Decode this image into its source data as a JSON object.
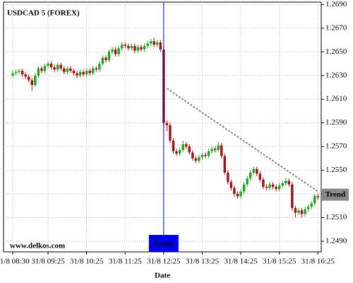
{
  "chart_data": {
    "type": "candlestick",
    "title": "USDCAD 5 (FOREX)",
    "xlabel": "Date",
    "watermark": "www.delkos.com",
    "categories": [
      "31/8 08:30",
      null,
      null,
      null,
      null,
      null,
      null,
      null,
      null,
      null,
      null,
      "31/8 09:25",
      null,
      null,
      null,
      null,
      null,
      null,
      null,
      null,
      null,
      null,
      null,
      "31/8 10:25",
      null,
      null,
      null,
      null,
      null,
      null,
      null,
      null,
      null,
      null,
      null,
      "31/8 11:25",
      null,
      null,
      null,
      null,
      null,
      null,
      null,
      null,
      null,
      null,
      null,
      "31/8 12:25",
      null,
      null,
      null,
      null,
      null,
      null,
      null,
      null,
      null,
      null,
      null,
      "31/8 13:25",
      null,
      null,
      null,
      null,
      null,
      null,
      null,
      null,
      null,
      null,
      null,
      "31/8 14:25",
      null,
      null,
      null,
      null,
      null,
      null,
      null,
      null,
      null,
      null,
      null,
      "31/8 15:25",
      null,
      null,
      null,
      null,
      null,
      null,
      null,
      null,
      null,
      null,
      null,
      "31/8 16:25"
    ],
    "opens": [
      1.263,
      1.2632,
      1.2633,
      1.2634,
      1.2631,
      1.2629,
      1.2626,
      1.2622,
      1.263,
      1.2636,
      1.2634,
      1.2638,
      1.264,
      1.2637,
      1.2635,
      1.2639,
      1.2636,
      1.2633,
      1.2636,
      1.2634,
      1.2632,
      1.263,
      1.2633,
      1.2631,
      1.2634,
      1.2632,
      1.2636,
      1.2635,
      1.264,
      1.2645,
      1.2643,
      1.265,
      1.2652,
      1.2648,
      1.2653,
      1.2656,
      1.2655,
      1.2653,
      1.2655,
      1.2651,
      1.2654,
      1.2652,
      1.2655,
      1.2657,
      1.2659,
      1.2656,
      1.2658,
      1.2652,
      1.259,
      1.2588,
      1.2575,
      1.2566,
      1.2564,
      1.2567,
      1.2572,
      1.257,
      1.2565,
      1.256,
      1.2558,
      1.2561,
      1.2563,
      1.2562,
      1.2566,
      1.2568,
      1.2567,
      1.2571,
      1.2562,
      1.2548,
      1.254,
      1.2535,
      1.253,
      1.2528,
      1.2532,
      1.2538,
      1.2543,
      1.2548,
      1.2551,
      1.2547,
      1.2542,
      1.2536,
      1.2535,
      1.2538,
      1.2536,
      1.2534,
      1.2537,
      1.2539,
      1.2541,
      1.2538,
      1.2518,
      1.2514,
      1.2516,
      1.2513,
      1.2517,
      1.2519,
      1.2522,
      1.2528
    ],
    "highs": [
      1.2634,
      1.2635,
      1.2636,
      1.2636,
      1.2633,
      1.2631,
      1.2628,
      1.2632,
      1.2638,
      1.2638,
      1.264,
      1.2642,
      1.2642,
      1.2639,
      1.2641,
      1.2641,
      1.2638,
      1.2638,
      1.2638,
      1.2636,
      1.2634,
      1.2635,
      1.2635,
      1.2636,
      1.2636,
      1.2638,
      1.2638,
      1.2642,
      1.2647,
      1.2647,
      1.2652,
      1.2654,
      1.2654,
      1.2655,
      1.2658,
      1.2658,
      1.2657,
      1.2657,
      1.2657,
      1.2656,
      1.2656,
      1.2657,
      1.2659,
      1.2661,
      1.2662,
      1.266,
      1.266,
      1.2655,
      1.2592,
      1.259,
      1.2577,
      1.2568,
      1.2569,
      1.2575,
      1.2574,
      1.2572,
      1.2567,
      1.2562,
      1.2563,
      1.2565,
      1.2565,
      1.2568,
      1.257,
      1.257,
      1.2574,
      1.2573,
      1.2564,
      1.255,
      1.2542,
      1.2537,
      1.2532,
      1.2534,
      1.254,
      1.2545,
      1.255,
      1.2553,
      1.2553,
      1.2549,
      1.2544,
      1.2538,
      1.254,
      1.254,
      1.2538,
      1.2539,
      1.2541,
      1.2543,
      1.2543,
      1.254,
      1.252,
      1.2518,
      1.2518,
      1.2519,
      1.2521,
      1.2524,
      1.253,
      1.253
    ],
    "lows": [
      1.2628,
      1.263,
      1.2631,
      1.2629,
      1.2627,
      1.2624,
      1.2617,
      1.262,
      1.2628,
      1.2632,
      1.2632,
      1.2636,
      1.2635,
      1.2633,
      1.2633,
      1.2634,
      1.2631,
      1.2631,
      1.2632,
      1.263,
      1.2628,
      1.2628,
      1.2629,
      1.2629,
      1.263,
      1.263,
      1.2633,
      1.2633,
      1.2638,
      1.2641,
      1.2641,
      1.2648,
      1.2646,
      1.2646,
      1.2651,
      1.2653,
      1.2651,
      1.2651,
      1.2649,
      1.2649,
      1.265,
      1.265,
      1.2653,
      1.2655,
      1.2654,
      1.2654,
      1.265,
      1.2586,
      1.2583,
      1.2573,
      1.2564,
      1.2562,
      1.2562,
      1.2565,
      1.2568,
      1.2563,
      1.2558,
      1.2556,
      1.2556,
      1.2559,
      1.256,
      1.256,
      1.2564,
      1.2565,
      1.2565,
      1.256,
      1.2546,
      1.2538,
      1.2533,
      1.2528,
      1.2526,
      1.2526,
      1.253,
      1.2536,
      1.2541,
      1.2546,
      1.2545,
      1.254,
      1.2534,
      1.2533,
      1.2533,
      1.2534,
      1.2532,
      1.2532,
      1.2535,
      1.2537,
      1.2536,
      1.2516,
      1.251,
      1.2512,
      1.251,
      1.2511,
      1.2515,
      1.2517,
      1.252,
      1.2525
    ],
    "closes": [
      1.2632,
      1.2633,
      1.2634,
      1.2631,
      1.2629,
      1.2626,
      1.2622,
      1.263,
      1.2636,
      1.2634,
      1.2638,
      1.264,
      1.2637,
      1.2635,
      1.2639,
      1.2636,
      1.2633,
      1.2636,
      1.2634,
      1.2632,
      1.263,
      1.2633,
      1.2631,
      1.2634,
      1.2632,
      1.2636,
      1.2635,
      1.264,
      1.2645,
      1.2643,
      1.265,
      1.2652,
      1.2648,
      1.2653,
      1.2656,
      1.2655,
      1.2653,
      1.2655,
      1.2651,
      1.2654,
      1.2652,
      1.2655,
      1.2657,
      1.2659,
      1.2656,
      1.2658,
      1.2652,
      1.259,
      1.2588,
      1.2575,
      1.2566,
      1.2564,
      1.2567,
      1.2572,
      1.257,
      1.2565,
      1.256,
      1.2558,
      1.2561,
      1.2563,
      1.2562,
      1.2566,
      1.2568,
      1.2567,
      1.2571,
      1.2562,
      1.2548,
      1.254,
      1.2535,
      1.253,
      1.2528,
      1.2532,
      1.2538,
      1.2543,
      1.2548,
      1.2551,
      1.2547,
      1.2542,
      1.2536,
      1.2535,
      1.2538,
      1.2536,
      1.2534,
      1.2537,
      1.2539,
      1.2541,
      1.2538,
      1.2518,
      1.2514,
      1.2516,
      1.2513,
      1.2517,
      1.2519,
      1.2522,
      1.2528,
      1.2527
    ],
    "up_color": "#22a022",
    "down_color": "#a01010",
    "ylim": [
      1.2481,
      1.2692
    ],
    "yticks": [
      {
        "value": 1.269,
        "label": "1.2690"
      },
      {
        "value": 1.267,
        "label": "1.2670"
      },
      {
        "value": 1.265,
        "label": "1.2650"
      },
      {
        "value": 1.263,
        "label": "1.2630"
      },
      {
        "value": 1.261,
        "label": "1.2610"
      },
      {
        "value": 1.259,
        "label": "1.2590"
      },
      {
        "value": 1.257,
        "label": "1.2570"
      },
      {
        "value": 1.255,
        "label": "1.2550"
      },
      {
        "value": 1.253,
        "label": "1.2530"
      },
      {
        "value": 1.251,
        "label": "1.2510"
      },
      {
        "value": 1.249,
        "label": "1.2490"
      }
    ],
    "grid": true,
    "event": {
      "label": "Event",
      "x": 47,
      "color": "#0000ee"
    },
    "trend": {
      "label": "Trend",
      "x": [
        48,
        95
      ],
      "values": [
        1.2619,
        1.2532
      ],
      "color": "#888888"
    }
  }
}
